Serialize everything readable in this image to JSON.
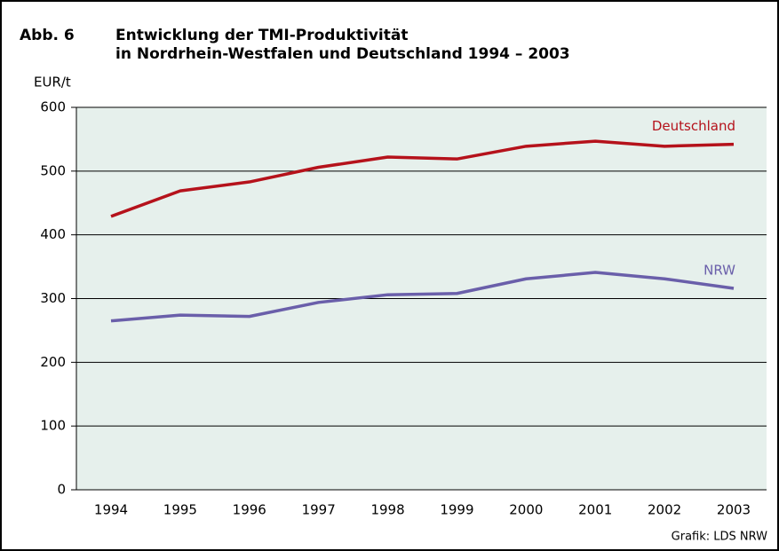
{
  "chart_data": {
    "type": "line",
    "label": "Abb. 6",
    "title": [
      "Entwicklung der TMI-Produktivität",
      "in Nordrhein-Westfalen und Deutschland 1994 – 2003"
    ],
    "ylabel": "EUR/t",
    "source": "Grafik: LDS NRW",
    "categories": [
      "1994",
      "1995",
      "1996",
      "1997",
      "1998",
      "1999",
      "2000",
      "2001",
      "2002",
      "2003"
    ],
    "series": [
      {
        "name": "Deutschland",
        "color": "#b5121b",
        "values": [
          429,
          469,
          483,
          506,
          522,
          519,
          539,
          547,
          539,
          542
        ]
      },
      {
        "name": "NRW",
        "color": "#6a5faa",
        "values": [
          265,
          274,
          272,
          294,
          306,
          308,
          331,
          341,
          331,
          316
        ]
      }
    ],
    "ylim": [
      0,
      600
    ],
    "yticks": [
      0,
      100,
      200,
      300,
      400,
      500,
      600
    ],
    "grid": true,
    "background": "#e6f0ec"
  }
}
